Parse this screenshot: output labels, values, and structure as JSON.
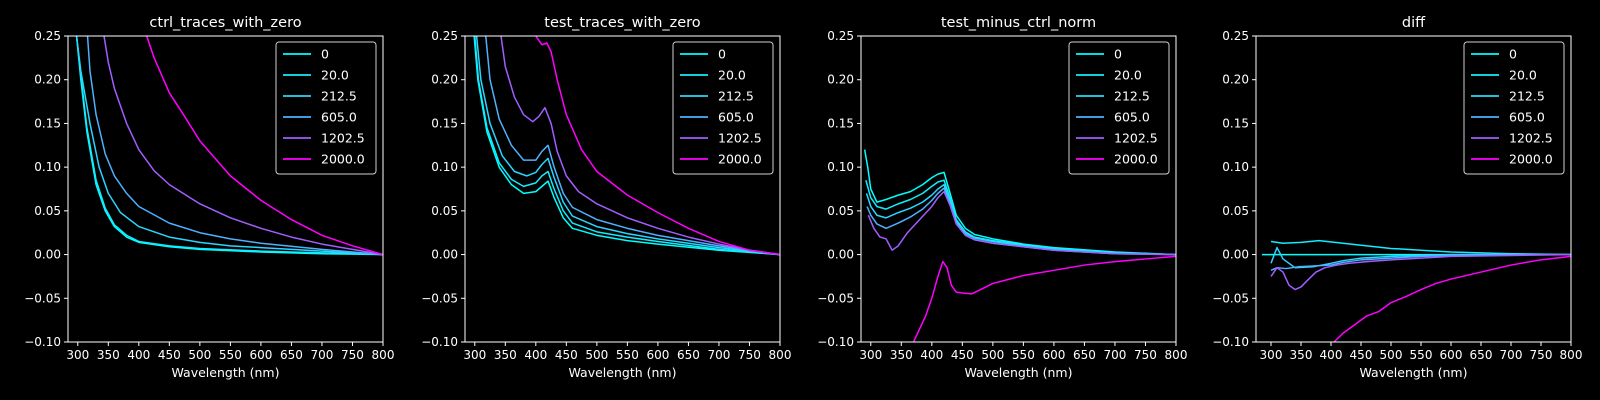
{
  "chart_data": [
    {
      "type": "line",
      "title": "ctrl_traces_with_zero",
      "xlabel": "Wavelength (nm)",
      "ylabel": "",
      "xlim": [
        284,
        800
      ],
      "ylim": [
        -0.1,
        0.25
      ],
      "xticks": [
        300,
        350,
        400,
        450,
        500,
        550,
        600,
        650,
        700,
        750,
        800
      ],
      "yticks": [
        -0.1,
        -0.05,
        0.0,
        0.05,
        0.1,
        0.15,
        0.2,
        0.25
      ],
      "ytick_labels": [
        "−0.10",
        "−0.05",
        "0.00",
        "0.05",
        "0.10",
        "0.15",
        "0.20",
        "0.25"
      ],
      "legend": "top-right",
      "series": [
        {
          "name": "0",
          "color": "#00ffff",
          "x": [
            298,
            305,
            315,
            330,
            345,
            360,
            380,
            400,
            450,
            500,
            600,
            700,
            800
          ],
          "y": [
            0.25,
            0.2,
            0.14,
            0.08,
            0.05,
            0.032,
            0.02,
            0.014,
            0.009,
            0.006,
            0.003,
            0.001,
            0.0
          ]
        },
        {
          "name": "20.0",
          "color": "#14ebff",
          "x": [
            298,
            305,
            315,
            330,
            345,
            360,
            380,
            400,
            450,
            500,
            600,
            700,
            800
          ],
          "y": [
            0.25,
            0.205,
            0.145,
            0.085,
            0.053,
            0.034,
            0.022,
            0.015,
            0.01,
            0.007,
            0.004,
            0.002,
            0.0
          ]
        },
        {
          "name": "212.5",
          "color": "#29d6ff",
          "x": [
            298,
            305,
            320,
            335,
            350,
            370,
            400,
            450,
            500,
            550,
            600,
            700,
            800
          ],
          "y": [
            0.25,
            0.21,
            0.15,
            0.1,
            0.07,
            0.048,
            0.032,
            0.02,
            0.014,
            0.01,
            0.008,
            0.004,
            0.0
          ]
        },
        {
          "name": "605.0",
          "color": "#4eb1ff",
          "x": [
            316,
            320,
            330,
            345,
            360,
            380,
            400,
            450,
            500,
            550,
            600,
            700,
            800
          ],
          "y": [
            0.25,
            0.21,
            0.16,
            0.115,
            0.09,
            0.07,
            0.055,
            0.036,
            0.025,
            0.018,
            0.013,
            0.006,
            0.0
          ]
        },
        {
          "name": "1202.5",
          "color": "#a15eff",
          "x": [
            343,
            350,
            360,
            380,
            400,
            425,
            450,
            500,
            550,
            600,
            650,
            700,
            750,
            800
          ],
          "y": [
            0.25,
            0.22,
            0.19,
            0.15,
            0.12,
            0.096,
            0.08,
            0.058,
            0.042,
            0.03,
            0.02,
            0.012,
            0.006,
            0.0
          ]
        },
        {
          "name": "2000.0",
          "color": "#ff00ff",
          "x": [
            413,
            425,
            450,
            475,
            500,
            550,
            600,
            650,
            700,
            750,
            800
          ],
          "y": [
            0.25,
            0.225,
            0.185,
            0.158,
            0.13,
            0.09,
            0.062,
            0.04,
            0.022,
            0.01,
            0.0
          ]
        }
      ]
    },
    {
      "type": "line",
      "title": "test_traces_with_zero",
      "xlabel": "Wavelength (nm)",
      "ylabel": "",
      "xlim": [
        284,
        800
      ],
      "ylim": [
        -0.1,
        0.25
      ],
      "xticks": [
        300,
        350,
        400,
        450,
        500,
        550,
        600,
        650,
        700,
        750,
        800
      ],
      "yticks": [
        -0.1,
        -0.05,
        0.0,
        0.05,
        0.1,
        0.15,
        0.2,
        0.25
      ],
      "ytick_labels": [
        "−0.10",
        "−0.05",
        "0.00",
        "0.05",
        "0.10",
        "0.15",
        "0.20",
        "0.25"
      ],
      "legend": "top-right",
      "series": [
        {
          "name": "0",
          "color": "#00ffff",
          "x": [
            299,
            305,
            320,
            340,
            360,
            380,
            400,
            410,
            420,
            430,
            445,
            460,
            500,
            550,
            600,
            700,
            800
          ],
          "y": [
            0.25,
            0.2,
            0.14,
            0.1,
            0.08,
            0.07,
            0.072,
            0.078,
            0.084,
            0.065,
            0.042,
            0.03,
            0.022,
            0.016,
            0.012,
            0.005,
            0.0
          ]
        },
        {
          "name": "20.0",
          "color": "#14ebff",
          "x": [
            300,
            306,
            320,
            340,
            360,
            380,
            400,
            410,
            420,
            430,
            445,
            460,
            500,
            550,
            600,
            700,
            800
          ],
          "y": [
            0.25,
            0.2,
            0.145,
            0.105,
            0.086,
            0.078,
            0.082,
            0.09,
            0.095,
            0.075,
            0.05,
            0.036,
            0.026,
            0.02,
            0.015,
            0.006,
            0.0
          ]
        },
        {
          "name": "212.5",
          "color": "#29d6ff",
          "x": [
            303,
            310,
            325,
            345,
            365,
            385,
            400,
            410,
            420,
            430,
            445,
            460,
            500,
            550,
            600,
            700,
            800
          ],
          "y": [
            0.25,
            0.2,
            0.15,
            0.113,
            0.095,
            0.09,
            0.094,
            0.103,
            0.11,
            0.088,
            0.06,
            0.044,
            0.032,
            0.024,
            0.018,
            0.008,
            0.0
          ]
        },
        {
          "name": "605.0",
          "color": "#4eb1ff",
          "x": [
            318,
            325,
            340,
            360,
            380,
            400,
            410,
            420,
            430,
            445,
            460,
            500,
            550,
            600,
            700,
            800
          ],
          "y": [
            0.25,
            0.2,
            0.155,
            0.125,
            0.108,
            0.108,
            0.118,
            0.125,
            0.1,
            0.07,
            0.054,
            0.04,
            0.03,
            0.022,
            0.01,
            0.0
          ]
        },
        {
          "name": "1202.5",
          "color": "#a15eff",
          "x": [
            343,
            350,
            365,
            380,
            395,
            405,
            415,
            425,
            435,
            450,
            470,
            500,
            550,
            600,
            650,
            700,
            750,
            800
          ],
          "y": [
            0.25,
            0.215,
            0.18,
            0.16,
            0.152,
            0.158,
            0.168,
            0.15,
            0.118,
            0.09,
            0.072,
            0.058,
            0.042,
            0.03,
            0.02,
            0.012,
            0.005,
            0.0
          ]
        },
        {
          "name": "2000.0",
          "color": "#ff00ff",
          "x": [
            400,
            405,
            410,
            418,
            425,
            435,
            450,
            475,
            500,
            550,
            600,
            650,
            700,
            750,
            800
          ],
          "y": [
            0.25,
            0.245,
            0.24,
            0.242,
            0.232,
            0.2,
            0.16,
            0.12,
            0.095,
            0.068,
            0.048,
            0.03,
            0.015,
            0.005,
            0.0
          ]
        }
      ]
    },
    {
      "type": "line",
      "title": "test_minus_ctrl_norm",
      "xlabel": "Wavelength (nm)",
      "ylabel": "",
      "xlim": [
        284,
        800
      ],
      "ylim": [
        -0.1,
        0.25
      ],
      "xticks": [
        300,
        350,
        400,
        450,
        500,
        550,
        600,
        650,
        700,
        750,
        800
      ],
      "yticks": [
        -0.1,
        -0.05,
        0.0,
        0.05,
        0.1,
        0.15,
        0.2,
        0.25
      ],
      "ytick_labels": [
        "−0.10",
        "−0.05",
        "0.00",
        "0.05",
        "0.10",
        "0.15",
        "0.20",
        "0.25"
      ],
      "legend": "top-right",
      "series": [
        {
          "name": "0",
          "color": "#00ffff",
          "x": [
            290,
            295,
            300,
            310,
            325,
            345,
            365,
            385,
            400,
            410,
            420,
            430,
            440,
            455,
            470,
            500,
            550,
            600,
            700,
            800
          ],
          "y": [
            0.12,
            0.1,
            0.075,
            0.06,
            0.063,
            0.068,
            0.072,
            0.08,
            0.088,
            0.092,
            0.094,
            0.07,
            0.045,
            0.03,
            0.023,
            0.018,
            0.012,
            0.008,
            0.003,
            0.0
          ]
        },
        {
          "name": "20.0",
          "color": "#14ebff",
          "x": [
            292,
            300,
            310,
            325,
            345,
            365,
            385,
            400,
            410,
            420,
            430,
            440,
            455,
            470,
            500,
            550,
            600,
            700,
            800
          ],
          "y": [
            0.085,
            0.065,
            0.055,
            0.052,
            0.058,
            0.063,
            0.07,
            0.078,
            0.083,
            0.085,
            0.064,
            0.04,
            0.026,
            0.02,
            0.016,
            0.011,
            0.007,
            0.002,
            0.0
          ]
        },
        {
          "name": "212.5",
          "color": "#29d6ff",
          "x": [
            293,
            300,
            310,
            325,
            345,
            365,
            385,
            400,
            410,
            420,
            430,
            440,
            455,
            470,
            500,
            550,
            600,
            700,
            800
          ],
          "y": [
            0.07,
            0.055,
            0.045,
            0.042,
            0.048,
            0.053,
            0.06,
            0.068,
            0.075,
            0.08,
            0.06,
            0.038,
            0.024,
            0.019,
            0.015,
            0.01,
            0.006,
            0.002,
            0.0
          ]
        },
        {
          "name": "605.0",
          "color": "#4eb1ff",
          "x": [
            294,
            300,
            310,
            325,
            345,
            365,
            385,
            400,
            410,
            420,
            430,
            440,
            455,
            470,
            500,
            550,
            600,
            700,
            800
          ],
          "y": [
            0.055,
            0.045,
            0.035,
            0.03,
            0.036,
            0.043,
            0.052,
            0.062,
            0.07,
            0.076,
            0.058,
            0.036,
            0.022,
            0.017,
            0.013,
            0.009,
            0.005,
            0.001,
            0.0
          ]
        },
        {
          "name": "1202.5",
          "color": "#a15eff",
          "x": [
            296,
            305,
            315,
            325,
            335,
            345,
            360,
            380,
            400,
            410,
            420,
            430,
            440,
            455,
            470,
            500,
            550,
            600,
            700,
            800
          ],
          "y": [
            0.045,
            0.03,
            0.02,
            0.018,
            0.005,
            0.01,
            0.025,
            0.04,
            0.055,
            0.065,
            0.072,
            0.056,
            0.035,
            0.022,
            0.017,
            0.013,
            0.009,
            0.005,
            0.001,
            0.0
          ]
        },
        {
          "name": "2000.0",
          "color": "#ff00ff",
          "x": [
            370,
            380,
            390,
            400,
            410,
            418,
            425,
            432,
            440,
            450,
            465,
            480,
            500,
            550,
            600,
            650,
            700,
            750,
            800
          ],
          "y": [
            -0.1,
            -0.085,
            -0.07,
            -0.05,
            -0.025,
            -0.008,
            -0.015,
            -0.035,
            -0.043,
            -0.044,
            -0.045,
            -0.04,
            -0.033,
            -0.024,
            -0.018,
            -0.012,
            -0.008,
            -0.005,
            -0.002
          ]
        }
      ]
    },
    {
      "type": "line",
      "title": "diff",
      "xlabel": "Wavelength (nm)",
      "ylabel": "",
      "xlim": [
        275,
        800
      ],
      "ylim": [
        -0.1,
        0.25
      ],
      "xticks": [
        300,
        350,
        400,
        450,
        500,
        550,
        600,
        650,
        700,
        750,
        800
      ],
      "yticks": [
        -0.1,
        -0.05,
        0.0,
        0.05,
        0.1,
        0.15,
        0.2,
        0.25
      ],
      "ytick_labels": [
        "−0.10",
        "−0.05",
        "0.00",
        "0.05",
        "0.10",
        "0.15",
        "0.20",
        "0.25"
      ],
      "legend": "top-right",
      "series": [
        {
          "name": "0",
          "color": "#00ffff",
          "x": [
            285,
            400,
            500,
            600,
            700,
            800
          ],
          "y": [
            0.0,
            0.0,
            0.0,
            0.0,
            0.0,
            0.0
          ]
        },
        {
          "name": "20.0",
          "color": "#14ebff",
          "x": [
            300,
            320,
            350,
            380,
            420,
            460,
            500,
            550,
            600,
            700,
            800
          ],
          "y": [
            0.015,
            0.013,
            0.014,
            0.016,
            0.013,
            0.01,
            0.007,
            0.005,
            0.003,
            0.001,
            0.0
          ]
        },
        {
          "name": "212.5",
          "color": "#29d6ff",
          "x": [
            300,
            310,
            320,
            340,
            370,
            400,
            420,
            450,
            500,
            550,
            600,
            700,
            800
          ],
          "y": [
            -0.01,
            0.008,
            -0.005,
            -0.015,
            -0.014,
            -0.01,
            -0.007,
            -0.004,
            -0.002,
            -0.001,
            0.0,
            0.0,
            0.0
          ]
        },
        {
          "name": "605.0",
          "color": "#4eb1ff",
          "x": [
            300,
            310,
            325,
            345,
            370,
            400,
            420,
            450,
            500,
            550,
            600,
            700,
            800
          ],
          "y": [
            -0.018,
            -0.015,
            -0.016,
            -0.014,
            -0.013,
            -0.012,
            -0.009,
            -0.006,
            -0.004,
            -0.002,
            -0.001,
            0.0,
            0.0
          ]
        },
        {
          "name": "1202.5",
          "color": "#a15eff",
          "x": [
            300,
            310,
            320,
            330,
            340,
            350,
            360,
            375,
            390,
            410,
            430,
            460,
            500,
            550,
            600,
            700,
            800
          ],
          "y": [
            -0.025,
            -0.015,
            -0.02,
            -0.035,
            -0.04,
            -0.037,
            -0.03,
            -0.02,
            -0.015,
            -0.012,
            -0.01,
            -0.008,
            -0.006,
            -0.004,
            -0.002,
            -0.001,
            0.0
          ]
        },
        {
          "name": "2000.0",
          "color": "#ff00ff",
          "x": [
            405,
            420,
            440,
            460,
            480,
            500,
            525,
            550,
            575,
            600,
            650,
            700,
            750,
            800
          ],
          "y": [
            -0.1,
            -0.09,
            -0.08,
            -0.07,
            -0.065,
            -0.055,
            -0.048,
            -0.04,
            -0.033,
            -0.028,
            -0.02,
            -0.012,
            -0.006,
            -0.002
          ]
        }
      ]
    }
  ]
}
